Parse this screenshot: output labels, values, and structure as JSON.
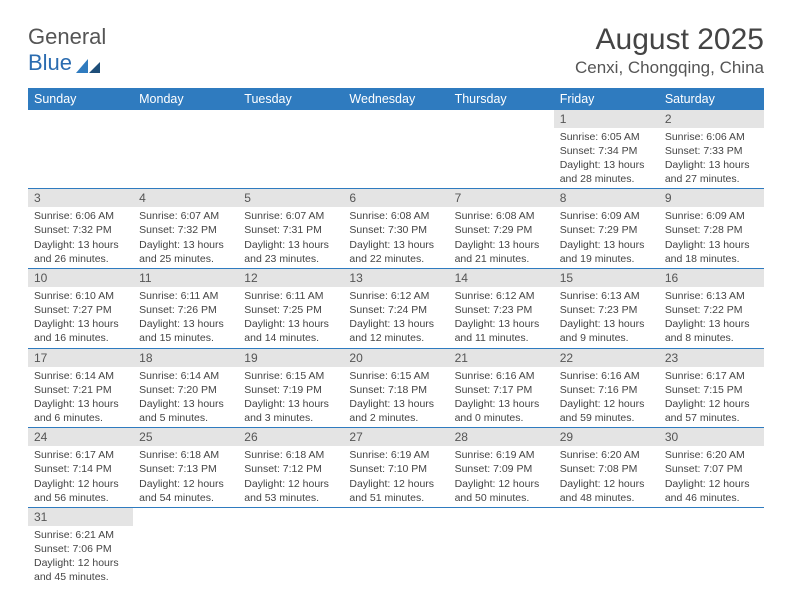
{
  "logo": {
    "text1": "General",
    "text2": "Blue"
  },
  "title": {
    "month": "August 2025",
    "location": "Cenxi, Chongqing, China"
  },
  "colors": {
    "header_bg": "#2f7bbf",
    "header_fg": "#ffffff",
    "daynum_bg": "#e4e4e4",
    "rule": "#2f7bbf"
  },
  "weekdays": [
    "Sunday",
    "Monday",
    "Tuesday",
    "Wednesday",
    "Thursday",
    "Friday",
    "Saturday"
  ],
  "weeks": [
    [
      null,
      null,
      null,
      null,
      null,
      {
        "n": "1",
        "sr": "6:05 AM",
        "ss": "7:34 PM",
        "dl": "13 hours and 28 minutes."
      },
      {
        "n": "2",
        "sr": "6:06 AM",
        "ss": "7:33 PM",
        "dl": "13 hours and 27 minutes."
      }
    ],
    [
      {
        "n": "3",
        "sr": "6:06 AM",
        "ss": "7:32 PM",
        "dl": "13 hours and 26 minutes."
      },
      {
        "n": "4",
        "sr": "6:07 AM",
        "ss": "7:32 PM",
        "dl": "13 hours and 25 minutes."
      },
      {
        "n": "5",
        "sr": "6:07 AM",
        "ss": "7:31 PM",
        "dl": "13 hours and 23 minutes."
      },
      {
        "n": "6",
        "sr": "6:08 AM",
        "ss": "7:30 PM",
        "dl": "13 hours and 22 minutes."
      },
      {
        "n": "7",
        "sr": "6:08 AM",
        "ss": "7:29 PM",
        "dl": "13 hours and 21 minutes."
      },
      {
        "n": "8",
        "sr": "6:09 AM",
        "ss": "7:29 PM",
        "dl": "13 hours and 19 minutes."
      },
      {
        "n": "9",
        "sr": "6:09 AM",
        "ss": "7:28 PM",
        "dl": "13 hours and 18 minutes."
      }
    ],
    [
      {
        "n": "10",
        "sr": "6:10 AM",
        "ss": "7:27 PM",
        "dl": "13 hours and 16 minutes."
      },
      {
        "n": "11",
        "sr": "6:11 AM",
        "ss": "7:26 PM",
        "dl": "13 hours and 15 minutes."
      },
      {
        "n": "12",
        "sr": "6:11 AM",
        "ss": "7:25 PM",
        "dl": "13 hours and 14 minutes."
      },
      {
        "n": "13",
        "sr": "6:12 AM",
        "ss": "7:24 PM",
        "dl": "13 hours and 12 minutes."
      },
      {
        "n": "14",
        "sr": "6:12 AM",
        "ss": "7:23 PM",
        "dl": "13 hours and 11 minutes."
      },
      {
        "n": "15",
        "sr": "6:13 AM",
        "ss": "7:23 PM",
        "dl": "13 hours and 9 minutes."
      },
      {
        "n": "16",
        "sr": "6:13 AM",
        "ss": "7:22 PM",
        "dl": "13 hours and 8 minutes."
      }
    ],
    [
      {
        "n": "17",
        "sr": "6:14 AM",
        "ss": "7:21 PM",
        "dl": "13 hours and 6 minutes."
      },
      {
        "n": "18",
        "sr": "6:14 AM",
        "ss": "7:20 PM",
        "dl": "13 hours and 5 minutes."
      },
      {
        "n": "19",
        "sr": "6:15 AM",
        "ss": "7:19 PM",
        "dl": "13 hours and 3 minutes."
      },
      {
        "n": "20",
        "sr": "6:15 AM",
        "ss": "7:18 PM",
        "dl": "13 hours and 2 minutes."
      },
      {
        "n": "21",
        "sr": "6:16 AM",
        "ss": "7:17 PM",
        "dl": "13 hours and 0 minutes."
      },
      {
        "n": "22",
        "sr": "6:16 AM",
        "ss": "7:16 PM",
        "dl": "12 hours and 59 minutes."
      },
      {
        "n": "23",
        "sr": "6:17 AM",
        "ss": "7:15 PM",
        "dl": "12 hours and 57 minutes."
      }
    ],
    [
      {
        "n": "24",
        "sr": "6:17 AM",
        "ss": "7:14 PM",
        "dl": "12 hours and 56 minutes."
      },
      {
        "n": "25",
        "sr": "6:18 AM",
        "ss": "7:13 PM",
        "dl": "12 hours and 54 minutes."
      },
      {
        "n": "26",
        "sr": "6:18 AM",
        "ss": "7:12 PM",
        "dl": "12 hours and 53 minutes."
      },
      {
        "n": "27",
        "sr": "6:19 AM",
        "ss": "7:10 PM",
        "dl": "12 hours and 51 minutes."
      },
      {
        "n": "28",
        "sr": "6:19 AM",
        "ss": "7:09 PM",
        "dl": "12 hours and 50 minutes."
      },
      {
        "n": "29",
        "sr": "6:20 AM",
        "ss": "7:08 PM",
        "dl": "12 hours and 48 minutes."
      },
      {
        "n": "30",
        "sr": "6:20 AM",
        "ss": "7:07 PM",
        "dl": "12 hours and 46 minutes."
      }
    ],
    [
      {
        "n": "31",
        "sr": "6:21 AM",
        "ss": "7:06 PM",
        "dl": "12 hours and 45 minutes."
      },
      null,
      null,
      null,
      null,
      null,
      null
    ]
  ],
  "labels": {
    "sunrise": "Sunrise:",
    "sunset": "Sunset:",
    "daylight": "Daylight:"
  }
}
